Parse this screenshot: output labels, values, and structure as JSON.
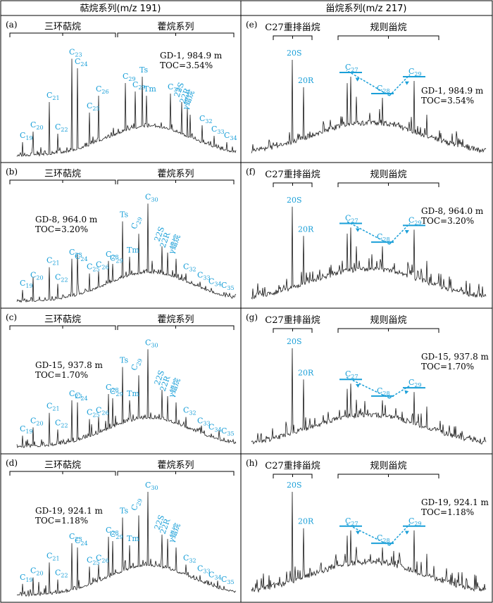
{
  "header": {
    "left": "萜烷系列(m/z 191)",
    "right": "甾烷系列(m/z 217)"
  },
  "colors": {
    "accent": "#1a9fd8",
    "trace": "#1a1a1a",
    "border": "#000000"
  },
  "chart_data": [
    {
      "id": "a",
      "type": "line",
      "label": "(a)",
      "groups": [
        "三环萜烷",
        "藿烷系列"
      ],
      "well": "GD-1, 984.9 m",
      "toc": "TOC=3.54%",
      "peaks": [
        {
          "label": "C19",
          "base": "C",
          "sub": "19",
          "y": 0.14
        },
        {
          "label": "C20",
          "base": "C",
          "sub": "20",
          "y": 0.24
        },
        {
          "label": "C21",
          "base": "C",
          "sub": "21",
          "y": 0.52
        },
        {
          "label": "C22",
          "base": "C",
          "sub": "22",
          "y": 0.22
        },
        {
          "label": "C23",
          "base": "C",
          "sub": "23",
          "y": 0.93
        },
        {
          "label": "C24",
          "base": "C",
          "sub": "24",
          "y": 0.84
        },
        {
          "label": "C25",
          "base": "C",
          "sub": "25",
          "y": 0.42
        },
        {
          "label": "C26",
          "base": "C",
          "sub": "26",
          "y": 0.58
        },
        {
          "label": "C29",
          "base": "C",
          "sub": "29",
          "y": 0.7
        },
        {
          "label": "Ts",
          "base": "Ts",
          "sub": "",
          "y": 0.76
        },
        {
          "label": "C29",
          "base": "C",
          "sub": "29",
          "y": 0.62
        },
        {
          "label": "Tm",
          "base": "Tm",
          "sub": "",
          "y": 0.58
        },
        {
          "label": "C30",
          "base": "C",
          "sub": "30",
          "y": 0.6
        },
        {
          "label": "22S",
          "base": "22S",
          "sub": "",
          "y": 0.52
        },
        {
          "label": "22R",
          "base": "22R",
          "sub": "",
          "y": 0.46
        },
        {
          "label": "γ蜡烷",
          "base": "γ蜡烷",
          "sub": "",
          "y": 0.4
        },
        {
          "label": "C32",
          "base": "C",
          "sub": "32",
          "y": 0.3
        },
        {
          "label": "C33",
          "base": "C",
          "sub": "33",
          "y": 0.2
        },
        {
          "label": "C34",
          "base": "C",
          "sub": "34",
          "y": 0.14
        }
      ]
    },
    {
      "id": "b",
      "type": "line",
      "label": "(b)",
      "groups": [
        "三环萜烷",
        "藿烷系列"
      ],
      "well": "GD-8, 964.0 m",
      "toc": "TOC=3.20%",
      "peaks": [
        {
          "label": "C19",
          "base": "C",
          "sub": "19",
          "y": 0.12
        },
        {
          "label": "C20",
          "base": "C",
          "sub": "20",
          "y": 0.2
        },
        {
          "label": "C21",
          "base": "C",
          "sub": "21",
          "y": 0.34
        },
        {
          "label": "C22",
          "base": "C",
          "sub": "22",
          "y": 0.18
        },
        {
          "label": "C23",
          "base": "C",
          "sub": "23",
          "y": 0.42
        },
        {
          "label": "C24",
          "base": "C",
          "sub": "24",
          "y": 0.38
        },
        {
          "label": "C25",
          "base": "C",
          "sub": "25",
          "y": 0.28
        },
        {
          "label": "C26",
          "base": "C",
          "sub": "26",
          "y": 0.3
        },
        {
          "label": "C28",
          "base": "C",
          "sub": "28",
          "y": 0.4
        },
        {
          "label": "C29",
          "base": "C",
          "sub": "29",
          "y": 0.36
        },
        {
          "label": "Ts",
          "base": "Ts",
          "sub": "",
          "y": 0.78
        },
        {
          "label": "Tm",
          "base": "Tm",
          "sub": "",
          "y": 0.44
        },
        {
          "label": "C29Ts",
          "base": "C",
          "sub": "29",
          "y": 0.66
        },
        {
          "label": "C30",
          "base": "C",
          "sub": "30",
          "y": 0.95
        },
        {
          "label": "22S",
          "base": "22S",
          "sub": "",
          "y": 0.54
        },
        {
          "label": "22R",
          "base": "22R",
          "sub": "",
          "y": 0.48
        },
        {
          "label": "γ蜡烷",
          "base": "γ蜡烷",
          "sub": "",
          "y": 0.42
        },
        {
          "label": "C32",
          "base": "C",
          "sub": "32",
          "y": 0.28
        },
        {
          "label": "C33",
          "base": "C",
          "sub": "33",
          "y": 0.2
        },
        {
          "label": "C34",
          "base": "C",
          "sub": "34",
          "y": 0.14
        },
        {
          "label": "C35",
          "base": "C",
          "sub": "35",
          "y": 0.1
        }
      ]
    },
    {
      "id": "c",
      "type": "line",
      "label": "(c)",
      "groups": [
        "三环萜烷",
        "藿烷系列"
      ],
      "well": "GD-15, 937.8 m",
      "toc": "TOC=1.70%",
      "peaks": [
        {
          "label": "C19",
          "base": "C",
          "sub": "19",
          "y": 0.12
        },
        {
          "label": "C20",
          "base": "C",
          "sub": "20",
          "y": 0.2
        },
        {
          "label": "C21",
          "base": "C",
          "sub": "21",
          "y": 0.34
        },
        {
          "label": "C22",
          "base": "C",
          "sub": "22",
          "y": 0.18
        },
        {
          "label": "C23",
          "base": "C",
          "sub": "23",
          "y": 0.46
        },
        {
          "label": "C24",
          "base": "C",
          "sub": "24",
          "y": 0.44
        },
        {
          "label": "C25",
          "base": "C",
          "sub": "25",
          "y": 0.28
        },
        {
          "label": "C26",
          "base": "C",
          "sub": "26",
          "y": 0.3
        },
        {
          "label": "C28",
          "base": "C",
          "sub": "28",
          "y": 0.52
        },
        {
          "label": "C29",
          "base": "C",
          "sub": "29",
          "y": 0.48
        },
        {
          "label": "Ts",
          "base": "Ts",
          "sub": "",
          "y": 0.78
        },
        {
          "label": "Tm",
          "base": "Tm",
          "sub": "",
          "y": 0.46
        },
        {
          "label": "C29Ts",
          "base": "C",
          "sub": "29",
          "y": 0.7
        },
        {
          "label": "C30",
          "base": "C",
          "sub": "30",
          "y": 0.95
        },
        {
          "label": "22S",
          "base": "22S",
          "sub": "",
          "y": 0.56
        },
        {
          "label": "22R",
          "base": "22R",
          "sub": "",
          "y": 0.5
        },
        {
          "label": "γ蜡烷",
          "base": "γ蜡烷",
          "sub": "",
          "y": 0.44
        },
        {
          "label": "C32",
          "base": "C",
          "sub": "32",
          "y": 0.3
        },
        {
          "label": "C33",
          "base": "C",
          "sub": "33",
          "y": 0.2
        },
        {
          "label": "C34",
          "base": "C",
          "sub": "34",
          "y": 0.14
        },
        {
          "label": "C35",
          "base": "C",
          "sub": "35",
          "y": 0.1
        }
      ]
    },
    {
      "id": "d",
      "type": "line",
      "label": "(d)",
      "groups": [
        "三环萜烷",
        "藿烷系列"
      ],
      "well": "GD-19, 924.1 m",
      "toc": "TOC=1.18%",
      "peaks": [
        {
          "label": "C19",
          "base": "C",
          "sub": "19",
          "y": 0.12
        },
        {
          "label": "C20",
          "base": "C",
          "sub": "20",
          "y": 0.18
        },
        {
          "label": "C21",
          "base": "C",
          "sub": "21",
          "y": 0.32
        },
        {
          "label": "C22",
          "base": "C",
          "sub": "22",
          "y": 0.16
        },
        {
          "label": "C23",
          "base": "C",
          "sub": "23",
          "y": 0.5
        },
        {
          "label": "C24",
          "base": "C",
          "sub": "24",
          "y": 0.46
        },
        {
          "label": "C25",
          "base": "C",
          "sub": "25",
          "y": 0.28
        },
        {
          "label": "C26",
          "base": "C",
          "sub": "26",
          "y": 0.3
        },
        {
          "label": "C28",
          "base": "C",
          "sub": "28",
          "y": 0.56
        },
        {
          "label": "C29",
          "base": "C",
          "sub": "29",
          "y": 0.52
        },
        {
          "label": "Ts",
          "base": "Ts",
          "sub": "",
          "y": 0.74
        },
        {
          "label": "Tm",
          "base": "Tm",
          "sub": "",
          "y": 0.48
        },
        {
          "label": "C29Ts",
          "base": "C",
          "sub": "29",
          "y": 0.76
        },
        {
          "label": "C30",
          "base": "C",
          "sub": "30",
          "y": 0.98
        },
        {
          "label": "22S",
          "base": "22S",
          "sub": "",
          "y": 0.58
        },
        {
          "label": "22R",
          "base": "22R",
          "sub": "",
          "y": 0.54
        },
        {
          "label": "γ蜡烷",
          "base": "γ蜡烷",
          "sub": "",
          "y": 0.46
        },
        {
          "label": "C32",
          "base": "C",
          "sub": "32",
          "y": 0.3
        },
        {
          "label": "C33",
          "base": "C",
          "sub": "33",
          "y": 0.2
        },
        {
          "label": "C34",
          "base": "C",
          "sub": "34",
          "y": 0.14
        },
        {
          "label": "C35",
          "base": "C",
          "sub": "35",
          "y": 0.1
        }
      ]
    },
    {
      "id": "e",
      "type": "line",
      "label": "(e)",
      "groups": [
        "C27重排甾烷",
        "规则甾烷"
      ],
      "well": "GD-1, 984.9 m",
      "toc": "TOC=3.54%",
      "peaks": [
        {
          "label": "20S",
          "base": "20S",
          "sub": "",
          "y": 0.92
        },
        {
          "label": "20R",
          "base": "20R",
          "sub": "",
          "y": 0.66
        },
        {
          "label": "C27",
          "base": "C",
          "sub": "27",
          "y": 0.76
        },
        {
          "label": "C28",
          "base": "C",
          "sub": "28",
          "y": 0.56
        },
        {
          "label": "C29",
          "base": "C",
          "sub": "29",
          "y": 0.72
        }
      ]
    },
    {
      "id": "f",
      "type": "line",
      "label": "(f)",
      "groups": [
        "C27重排甾烷",
        "规则甾烷"
      ],
      "well": "GD-8, 964.0 m",
      "toc": "TOC=3.20%",
      "peaks": [
        {
          "label": "20S",
          "base": "20S",
          "sub": "",
          "y": 0.92
        },
        {
          "label": "20R",
          "base": "20R",
          "sub": "",
          "y": 0.64
        },
        {
          "label": "C27",
          "base": "C",
          "sub": "27",
          "y": 0.72
        },
        {
          "label": "C28",
          "base": "C",
          "sub": "28",
          "y": 0.54
        },
        {
          "label": "C29",
          "base": "C",
          "sub": "29",
          "y": 0.7
        }
      ]
    },
    {
      "id": "g",
      "type": "line",
      "label": "(g)",
      "groups": [
        "C27重排甾烷",
        "规则甾烷"
      ],
      "well": "GD-15, 937.8 m",
      "toc": "TOC=1.70%",
      "peaks": [
        {
          "label": "20S",
          "base": "20S",
          "sub": "",
          "y": 0.96
        },
        {
          "label": "20R",
          "base": "20R",
          "sub": "",
          "y": 0.66
        },
        {
          "label": "C27",
          "base": "C",
          "sub": "27",
          "y": 0.62
        },
        {
          "label": "C28",
          "base": "C",
          "sub": "28",
          "y": 0.46
        },
        {
          "label": "C29",
          "base": "C",
          "sub": "29",
          "y": 0.54
        }
      ]
    },
    {
      "id": "h",
      "type": "line",
      "label": "(h)",
      "groups": [
        "C27重排甾烷",
        "规则甾烷"
      ],
      "well": "GD-19, 924.1 m",
      "toc": "TOC=1.18%",
      "peaks": [
        {
          "label": "20S",
          "base": "20S",
          "sub": "",
          "y": 0.98
        },
        {
          "label": "20R",
          "base": "20R",
          "sub": "",
          "y": 0.64
        },
        {
          "label": "C27",
          "base": "C",
          "sub": "27",
          "y": 0.62
        },
        {
          "label": "C28",
          "base": "C",
          "sub": "28",
          "y": 0.46
        },
        {
          "label": "C29",
          "base": "C",
          "sub": "29",
          "y": 0.62
        }
      ]
    }
  ]
}
